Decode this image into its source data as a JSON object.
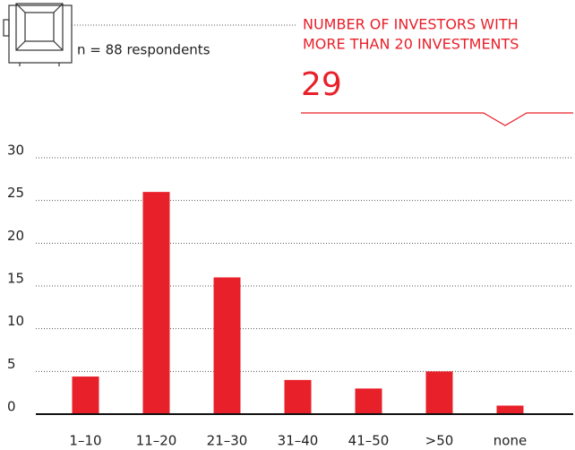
{
  "chart_data": {
    "type": "bar",
    "note": "n = 88 respondents",
    "annotation": {
      "label": [
        "NUMBER OF INVESTORS WITH",
        "MORE THAN 20 INVESTMENTS"
      ],
      "value": 29
    },
    "categories": [
      "1–10",
      "11–20",
      "21–30",
      "31–40",
      "41–50",
      ">50",
      "none"
    ],
    "values": [
      4.4,
      26,
      16,
      4,
      3,
      5,
      1
    ],
    "color": "#e8202a",
    "ylim": [
      0,
      30
    ],
    "yticks": [
      0,
      5,
      10,
      15,
      20,
      25,
      30
    ],
    "grid": true
  }
}
